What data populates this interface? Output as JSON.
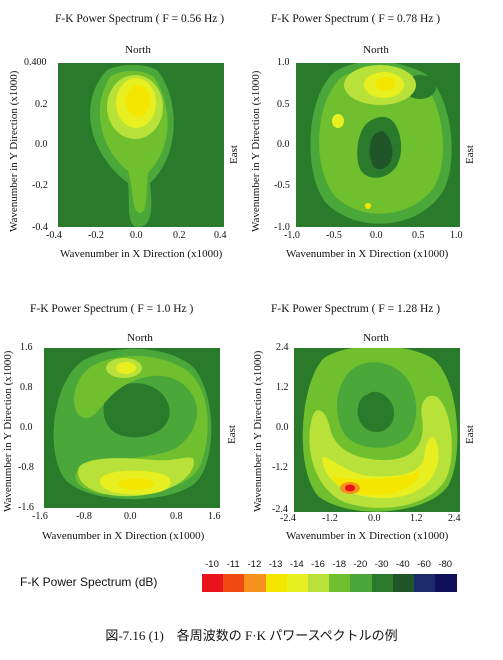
{
  "chart_data": [
    {
      "type": "heatmap",
      "title": "F-K Power Spectrum ( F = 0.56 Hz )",
      "north_label": "North",
      "east_label": "East",
      "xlabel": "Wavenumber in X Direction (x1000)",
      "ylabel": "Wavenumber in Y Direction (x1000)",
      "xlim": [
        -0.4,
        0.4
      ],
      "ylim": [
        -0.4,
        0.4
      ],
      "x_ticks": [
        "-0.4",
        "-0.2",
        "0.0",
        "0.2",
        "0.4"
      ],
      "y_ticks": [
        "0.400",
        "0.2",
        "0.0",
        "-0.2",
        "-0.4"
      ],
      "peak": {
        "x": -0.03,
        "y": 0.2,
        "level_dB": -13
      }
    },
    {
      "type": "heatmap",
      "title": "F-K Power Spectrum ( F = 0.78 Hz )",
      "north_label": "North",
      "east_label": "East",
      "xlabel": "Wavenumber in X Direction (x1000)",
      "ylabel": "Wavenumber in Y Direction (x1000)",
      "xlim": [
        -1.0,
        1.0
      ],
      "ylim": [
        -1.0,
        1.0
      ],
      "x_ticks": [
        "-1.0",
        "-0.5",
        "0.0",
        "0.5",
        "1.0"
      ],
      "y_ticks": [
        "1.0",
        "0.5",
        "0.0",
        "-0.5",
        "-1.0"
      ],
      "peak": {
        "x": -0.05,
        "y": 0.7,
        "level_dB": -13
      }
    },
    {
      "type": "heatmap",
      "title": "F-K Power Spectrum ( F = 1.0 Hz )",
      "north_label": "North",
      "east_label": "East",
      "xlabel": "Wavenumber in X Direction (x1000)",
      "ylabel": "Wavenumber in Y Direction (x1000)",
      "xlim": [
        -1.6,
        1.6
      ],
      "ylim": [
        -1.6,
        1.6
      ],
      "x_ticks": [
        "-1.6",
        "-0.8",
        "0.0",
        "0.8",
        "1.6"
      ],
      "y_ticks": [
        "1.6",
        "0.8",
        "0.0",
        "-0.8",
        "-1.6"
      ],
      "peak": {
        "x": 0.05,
        "y": -1.2,
        "level_dB": -13
      }
    },
    {
      "type": "heatmap",
      "title": "F-K Power Spectrum ( F = 1.28 Hz )",
      "north_label": "North",
      "east_label": "East",
      "xlabel": "Wavenumber in X Direction (x1000)",
      "ylabel": "Wavenumber in Y Direction (x1000)",
      "xlim": [
        -2.4,
        2.4
      ],
      "ylim": [
        -2.4,
        2.4
      ],
      "x_ticks": [
        "-2.4",
        "-1.2",
        "0.0",
        "1.2",
        "2.4"
      ],
      "y_ticks": [
        "2.4",
        "1.2",
        "0.0",
        "-1.2",
        "-2.4"
      ],
      "peak": {
        "x": -0.9,
        "y": -1.95,
        "level_dB": -11
      }
    }
  ],
  "legend": {
    "title": "F-K Power Spectrum (dB)",
    "levels": [
      "-10",
      "-11",
      "-12",
      "-13",
      "-14",
      "-16",
      "-18",
      "-20",
      "-30",
      "-40",
      "-60",
      "-80"
    ],
    "colors": [
      "#e8141c",
      "#f04a10",
      "#f7921e",
      "#f5e600",
      "#e8ef20",
      "#b8e23a",
      "#6fbf2e",
      "#4aa83a",
      "#2a7a2c",
      "#20552a",
      "#1a2a6a",
      "#10105a"
    ]
  },
  "caption": "図-7.16 (1)　各周波数の F·K パワースペクトルの例"
}
